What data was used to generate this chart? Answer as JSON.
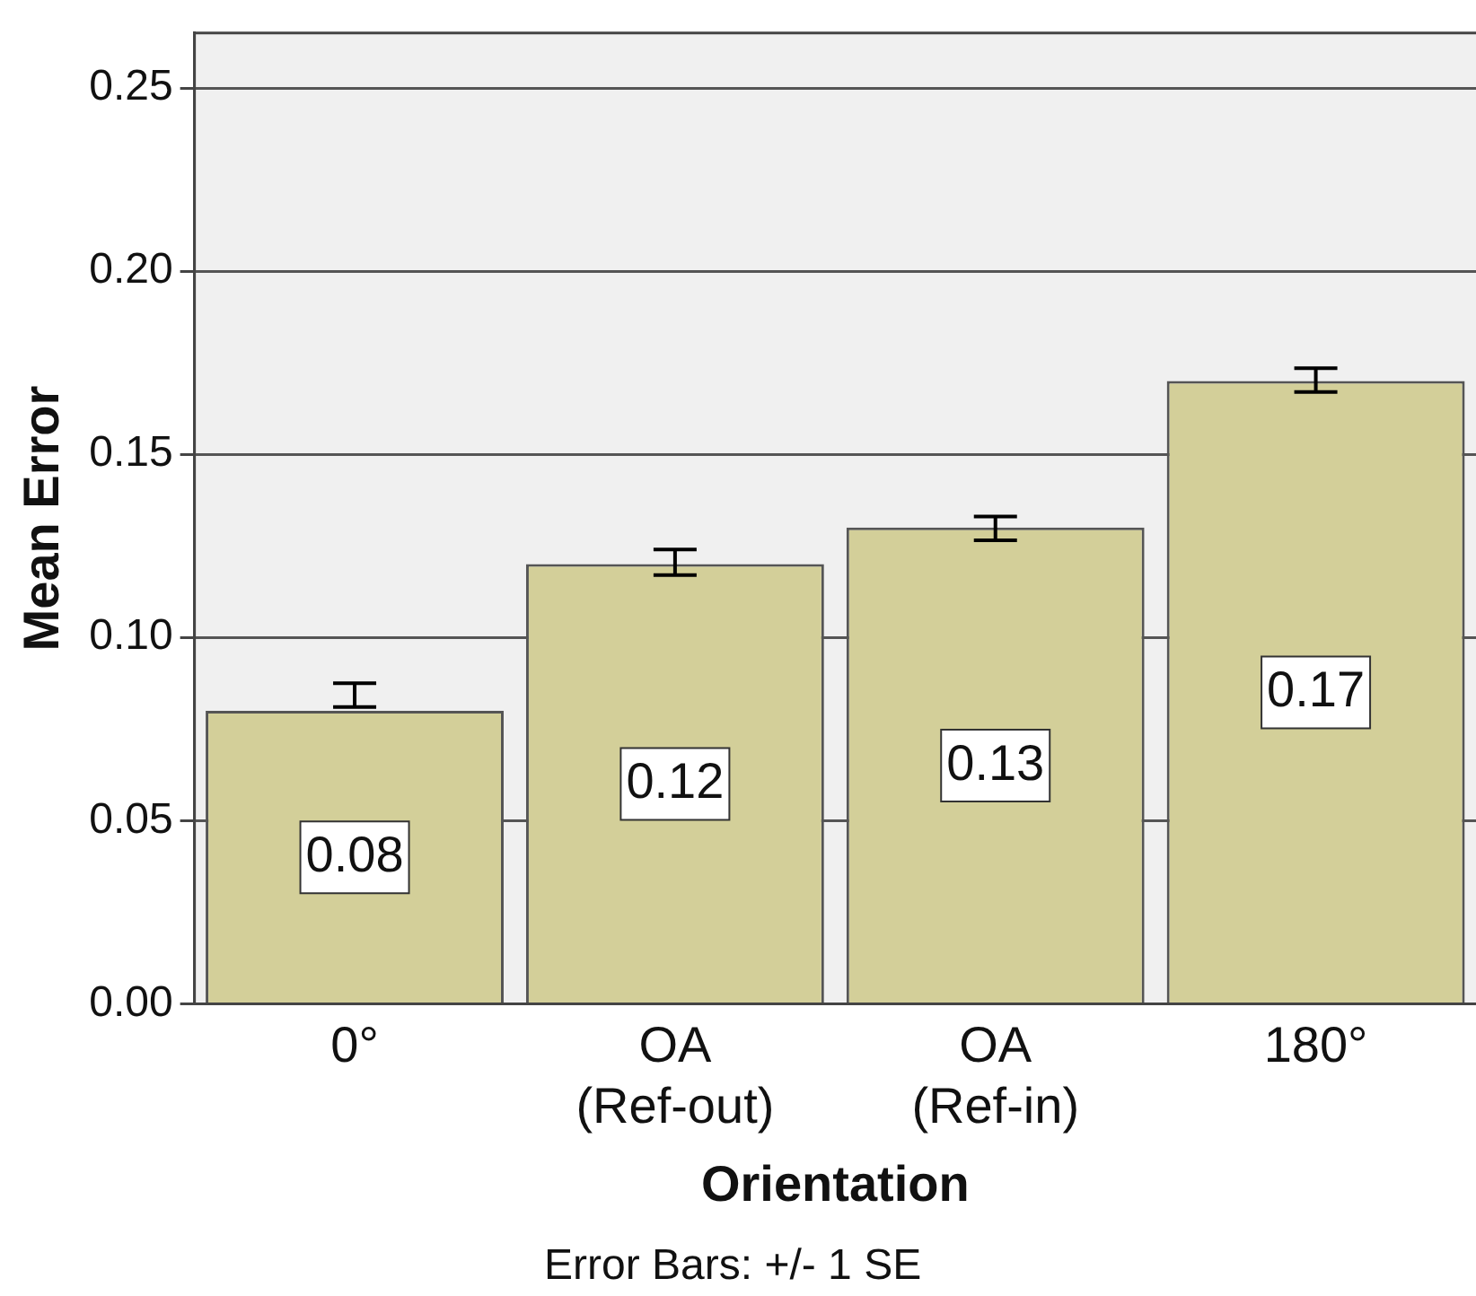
{
  "chart_data": {
    "type": "bar",
    "xlabel": "Orientation",
    "ylabel": "Mean Error",
    "categories": [
      "0°",
      "OA (Ref-out)",
      "OA (Ref-in)",
      "180°"
    ],
    "values": [
      0.08,
      0.12,
      0.13,
      0.17
    ],
    "color": "#d3cf99",
    "errors": [
      [
        0.081,
        0.0875
      ],
      [
        0.117,
        0.124
      ],
      [
        0.1265,
        0.133
      ],
      [
        0.167,
        0.1735
      ]
    ],
    "data_labels": true,
    "ylim": [
      0,
      0.265
    ],
    "yticks": [
      {
        "value": 0,
        "label": "0.00"
      },
      {
        "value": 0.05,
        "label": "0.05"
      },
      {
        "value": 0.1,
        "label": "0.10"
      },
      {
        "value": 0.15,
        "label": "0.15"
      },
      {
        "value": 0.2,
        "label": "0.20"
      },
      {
        "value": 0.25,
        "label": "0.25"
      }
    ],
    "grid": "y",
    "legend": false,
    "annotations": [
      "Error Bars: +/- 1 SE"
    ]
  }
}
